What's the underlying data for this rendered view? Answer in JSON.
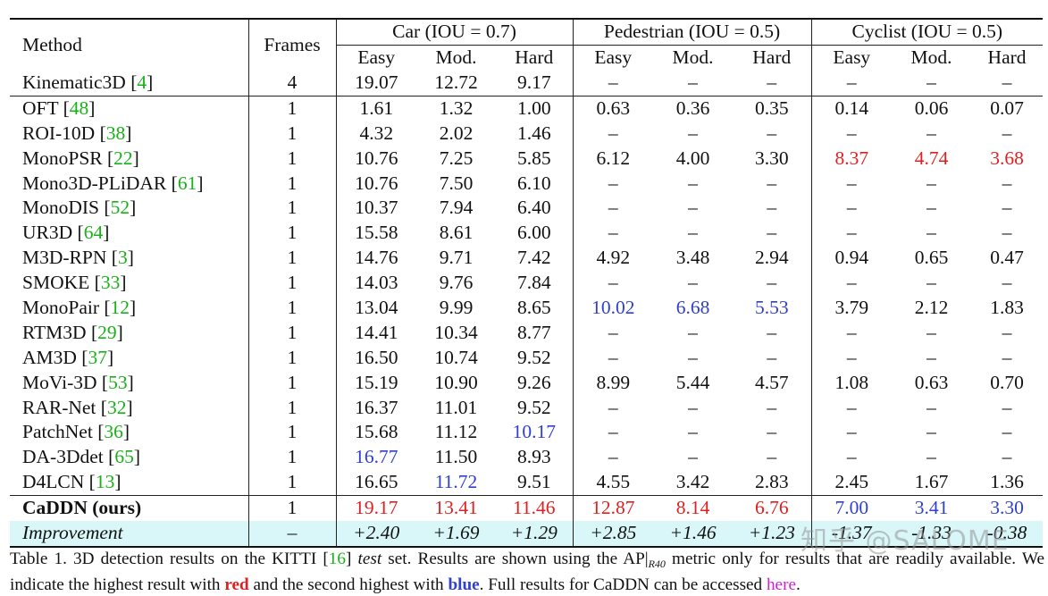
{
  "table": {
    "header": {
      "method": "Method",
      "frames": "Frames",
      "groups": [
        "Car (IOU = 0.7)",
        "Pedestrian (IOU = 0.5)",
        "Cyclist (IOU = 0.5)"
      ],
      "subcols": [
        "Easy",
        "Mod.",
        "Hard"
      ]
    },
    "rows": [
      {
        "method": "Kinematic3D",
        "ref": "4",
        "frames": "4",
        "vals": [
          "19.07",
          "12.72",
          "9.17",
          "–",
          "–",
          "–",
          "–",
          "–",
          "–"
        ]
      },
      {
        "method": "OFT",
        "ref": "48",
        "frames": "1",
        "vals": [
          "1.61",
          "1.32",
          "1.00",
          "0.63",
          "0.36",
          "0.35",
          "0.14",
          "0.06",
          "0.07"
        ]
      },
      {
        "method": "ROI-10D",
        "ref": "38",
        "frames": "1",
        "vals": [
          "4.32",
          "2.02",
          "1.46",
          "–",
          "–",
          "–",
          "–",
          "–",
          "–"
        ]
      },
      {
        "method": "MonoPSR",
        "ref": "22",
        "frames": "1",
        "vals": [
          "10.76",
          "7.25",
          "5.85",
          "6.12",
          "4.00",
          "3.30",
          "8.37",
          "4.74",
          "3.68"
        ]
      },
      {
        "method": "Mono3D-PLiDAR",
        "ref": "61",
        "frames": "1",
        "vals": [
          "10.76",
          "7.50",
          "6.10",
          "–",
          "–",
          "–",
          "–",
          "–",
          "–"
        ]
      },
      {
        "method": "MonoDIS",
        "ref": "52",
        "frames": "1",
        "vals": [
          "10.37",
          "7.94",
          "6.40",
          "–",
          "–",
          "–",
          "–",
          "–",
          "–"
        ]
      },
      {
        "method": "UR3D",
        "ref": "64",
        "frames": "1",
        "vals": [
          "15.58",
          "8.61",
          "6.00",
          "–",
          "–",
          "–",
          "–",
          "–",
          "–"
        ]
      },
      {
        "method": "M3D-RPN",
        "ref": "3",
        "frames": "1",
        "vals": [
          "14.76",
          "9.71",
          "7.42",
          "4.92",
          "3.48",
          "2.94",
          "0.94",
          "0.65",
          "0.47"
        ]
      },
      {
        "method": "SMOKE",
        "ref": "33",
        "frames": "1",
        "vals": [
          "14.03",
          "9.76",
          "7.84",
          "–",
          "–",
          "–",
          "–",
          "–",
          "–"
        ]
      },
      {
        "method": "MonoPair",
        "ref": "12",
        "frames": "1",
        "vals": [
          "13.04",
          "9.99",
          "8.65",
          "10.02",
          "6.68",
          "5.53",
          "3.79",
          "2.12",
          "1.83"
        ]
      },
      {
        "method": "RTM3D",
        "ref": "29",
        "frames": "1",
        "vals": [
          "14.41",
          "10.34",
          "8.77",
          "–",
          "–",
          "–",
          "–",
          "–",
          "–"
        ]
      },
      {
        "method": "AM3D",
        "ref": "37",
        "frames": "1",
        "vals": [
          "16.50",
          "10.74",
          "9.52",
          "–",
          "–",
          "–",
          "–",
          "–",
          "–"
        ]
      },
      {
        "method": "MoVi-3D",
        "ref": "53",
        "frames": "1",
        "vals": [
          "15.19",
          "10.90",
          "9.26",
          "8.99",
          "5.44",
          "4.57",
          "1.08",
          "0.63",
          "0.70"
        ]
      },
      {
        "method": "RAR-Net",
        "ref": "32",
        "frames": "1",
        "vals": [
          "16.37",
          "11.01",
          "9.52",
          "–",
          "–",
          "–",
          "–",
          "–",
          "–"
        ]
      },
      {
        "method": "PatchNet",
        "ref": "36",
        "frames": "1",
        "vals": [
          "15.68",
          "11.12",
          "10.17",
          "–",
          "–",
          "–",
          "–",
          "–",
          "–"
        ]
      },
      {
        "method": "DA-3Ddet",
        "ref": "65",
        "frames": "1",
        "vals": [
          "16.77",
          "11.50",
          "8.93",
          "–",
          "–",
          "–",
          "–",
          "–",
          "–"
        ]
      },
      {
        "method": "D4LCN",
        "ref": "13",
        "frames": "1",
        "vals": [
          "16.65",
          "11.72",
          "9.51",
          "4.55",
          "3.42",
          "2.83",
          "2.45",
          "1.67",
          "1.36"
        ]
      },
      {
        "method": "CaDDN (ours)",
        "ref": "",
        "frames": "1",
        "vals": [
          "19.17",
          "13.41",
          "11.46",
          "12.87",
          "8.14",
          "6.76",
          "7.00",
          "3.41",
          "3.30"
        ]
      },
      {
        "method": "Improvement",
        "ref": "",
        "frames": "–",
        "vals": [
          "+2.40",
          "+1.69",
          "+1.29",
          "+2.85",
          "+1.46",
          "+1.23",
          "-1.37",
          "-1.33",
          "-0.38"
        ]
      }
    ]
  },
  "caption": {
    "p1": "Table 1. 3D detection results on the KITTI [",
    "ref1": "16",
    "p2": "] ",
    "p3": "test",
    "p4": " set.  Results are shown using the AP|",
    "sub": "R40",
    "p5": " metric only for results that are readily available. We indicate the highest result with ",
    "red_word": "red",
    "p6": " and the second highest with ",
    "blue_word": "blue",
    "p7": ". Full results for CaDDN can be accessed ",
    "link": "here",
    "p8": "."
  },
  "watermark": "知乎 @SALOME",
  "colors": {
    "best": "#e02020",
    "second": "#2f3fd0",
    "cite": "#17b217",
    "link": "#d21fd2",
    "highlight_row": "#d9f7f9"
  },
  "highlights": {
    "3": {
      "6": "red",
      "7": "red",
      "8": "red"
    },
    "9": {
      "3": "blue",
      "4": "blue",
      "5": "blue"
    },
    "14": {
      "2": "blue"
    },
    "15": {
      "0": "blue"
    },
    "16": {
      "1": "blue"
    },
    "17": {
      "0": "red",
      "1": "red",
      "2": "red",
      "3": "red",
      "4": "red",
      "5": "red",
      "6": "blue",
      "7": "blue",
      "8": "blue"
    }
  }
}
